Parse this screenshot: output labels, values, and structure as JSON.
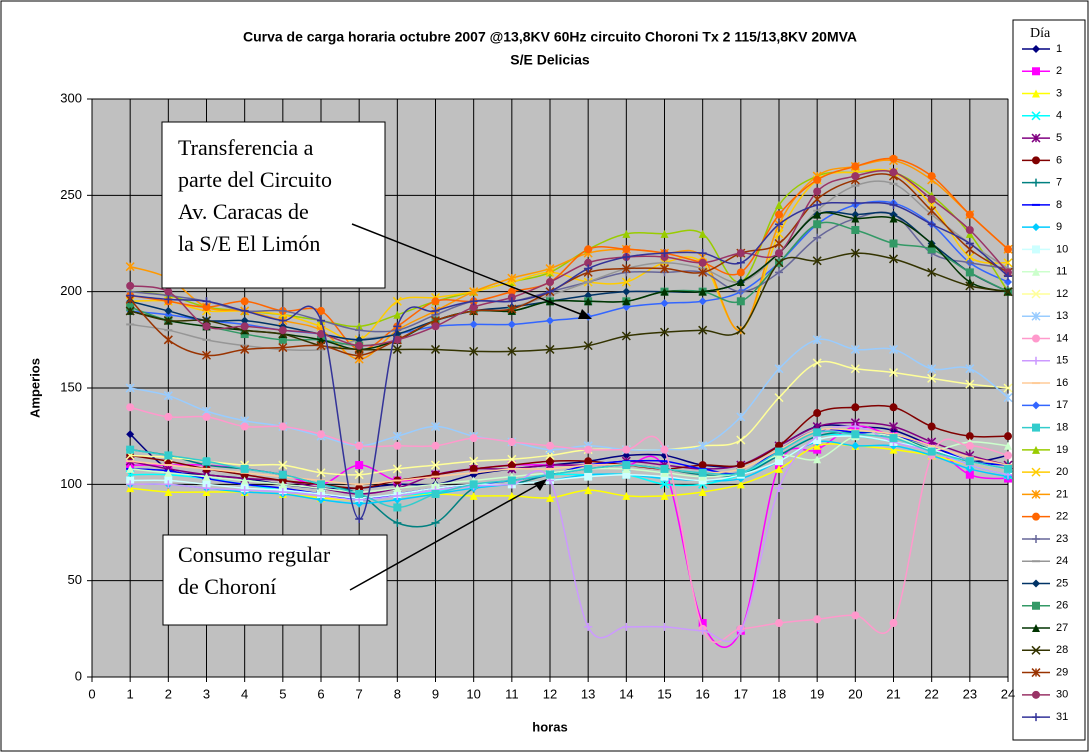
{
  "chart_data": {
    "type": "line",
    "title": "Curva de carga horaria octubre 2007 @13,8KV 60Hz circuito Choroni Tx 2 115/13,8KV 20MVA",
    "subtitle": "S/E Delicias",
    "xlabel": "horas",
    "ylabel": "Amperios",
    "legend_title": "Día",
    "legend": "right",
    "grid": true,
    "x": [
      1,
      2,
      3,
      4,
      5,
      6,
      7,
      8,
      9,
      10,
      11,
      12,
      13,
      14,
      15,
      16,
      17,
      18,
      19,
      20,
      21,
      22,
      23,
      24
    ],
    "xlim": [
      0,
      24
    ],
    "xticks": [
      0,
      1,
      2,
      3,
      4,
      5,
      6,
      7,
      8,
      9,
      10,
      11,
      12,
      13,
      14,
      15,
      16,
      17,
      18,
      19,
      20,
      21,
      22,
      23,
      24
    ],
    "ylim": [
      0,
      300
    ],
    "yticks": [
      0,
      50,
      100,
      150,
      200,
      250,
      300
    ],
    "annotations": [
      {
        "lines": [
          "Transferencia a",
          "parte del Circuito",
          "Av. Caracas de",
          "la S/E El Limón"
        ]
      },
      {
        "lines": [
          "Consumo regular",
          "de Choroní"
        ]
      }
    ],
    "series": [
      {
        "name": "1",
        "color": "#000080",
        "values": [
          126,
          108,
          105,
          103,
          100,
          98,
          98,
          100,
          100,
          105,
          108,
          110,
          112,
          115,
          115,
          110,
          110,
          120,
          130,
          130,
          128,
          120,
          112,
          115
        ]
      },
      {
        "name": "2",
        "color": "#FF00FF",
        "values": [
          110,
          110,
          110,
          108,
          105,
          100,
          110,
          102,
          105,
          108,
          110,
          110,
          110,
          110,
          108,
          28,
          24,
          110,
          118,
          130,
          125,
          120,
          105,
          103
        ]
      },
      {
        "name": "3",
        "color": "#FFFF00",
        "values": [
          98,
          96,
          96,
          96,
          95,
          93,
          92,
          94,
          95,
          94,
          94,
          93,
          97,
          94,
          94,
          96,
          100,
          108,
          120,
          120,
          118,
          115,
          110,
          105
        ]
      },
      {
        "name": "4",
        "color": "#00FFFF",
        "values": [
          105,
          105,
          103,
          100,
          97,
          95,
          92,
          94,
          96,
          100,
          102,
          105,
          105,
          105,
          100,
          100,
          105,
          115,
          125,
          125,
          122,
          118,
          110,
          105
        ]
      },
      {
        "name": "5",
        "color": "#800080",
        "values": [
          112,
          108,
          105,
          103,
          102,
          98,
          95,
          98,
          105,
          108,
          108,
          110,
          110,
          112,
          110,
          108,
          110,
          120,
          130,
          132,
          130,
          122,
          115,
          110
        ]
      },
      {
        "name": "6",
        "color": "#800000",
        "values": [
          115,
          112,
          108,
          105,
          102,
          100,
          98,
          102,
          105,
          108,
          110,
          112,
          112,
          110,
          108,
          110,
          110,
          120,
          137,
          140,
          140,
          130,
          125,
          125
        ]
      },
      {
        "name": "7",
        "color": "#008080",
        "values": [
          118,
          115,
          110,
          108,
          105,
          100,
          95,
          80,
          80,
          98,
          100,
          105,
          108,
          110,
          108,
          105,
          105,
          115,
          125,
          127,
          125,
          118,
          112,
          110
        ]
      },
      {
        "name": "8",
        "color": "#0000FF",
        "values": [
          108,
          107,
          103,
          100,
          98,
          95,
          92,
          95,
          98,
          100,
          102,
          105,
          110,
          112,
          112,
          108,
          106,
          118,
          128,
          127,
          125,
          120,
          112,
          110
        ]
      },
      {
        "name": "9",
        "color": "#00CCFF",
        "values": [
          100,
          100,
          98,
          96,
          95,
          92,
          90,
          92,
          95,
          98,
          100,
          102,
          105,
          105,
          103,
          102,
          103,
          112,
          122,
          120,
          120,
          115,
          108,
          104
        ]
      },
      {
        "name": "10",
        "color": "#CCFFFF",
        "values": [
          102,
          102,
          100,
          98,
          97,
          95,
          93,
          95,
          98,
          100,
          100,
          102,
          104,
          105,
          104,
          102,
          105,
          112,
          123,
          125,
          122,
          118,
          112,
          108
        ]
      },
      {
        "name": "11",
        "color": "#CCFFCC",
        "values": [
          108,
          106,
          104,
          102,
          100,
          98,
          96,
          98,
          100,
          102,
          104,
          106,
          108,
          108,
          106,
          104,
          106,
          115,
          113,
          125,
          125,
          118,
          122,
          120
        ]
      },
      {
        "name": "12",
        "color": "#FFFF99",
        "values": [
          115,
          114,
          112,
          110,
          110,
          106,
          105,
          108,
          110,
          112,
          113,
          115,
          118,
          118,
          118,
          120,
          123,
          145,
          163,
          160,
          158,
          155,
          152,
          150
        ]
      },
      {
        "name": "13",
        "color": "#99CCFF",
        "values": [
          150,
          146,
          138,
          133,
          130,
          125,
          120,
          125,
          130,
          125,
          122,
          118,
          120,
          118,
          118,
          120,
          135,
          160,
          175,
          170,
          170,
          160,
          160,
          145
        ]
      },
      {
        "name": "14",
        "color": "#FF99CC",
        "values": [
          140,
          135,
          135,
          130,
          130,
          126,
          120,
          120,
          120,
          124,
          122,
          120,
          118,
          118,
          118,
          25,
          25,
          28,
          30,
          32,
          28,
          115,
          120,
          115
        ]
      },
      {
        "name": "15",
        "color": "#CC99FF",
        "values": [
          100,
          100,
          98,
          97,
          96,
          94,
          92,
          94,
          97,
          99,
          100,
          102,
          26,
          26,
          26,
          24,
          24,
          98,
          125,
          130,
          122,
          117,
          110,
          105
        ]
      },
      {
        "name": "16",
        "color": "#FFCC99",
        "values": [
          112,
          110,
          108,
          106,
          104,
          102,
          100,
          102,
          104,
          106,
          108,
          108,
          110,
          110,
          108,
          106,
          108,
          118,
          128,
          128,
          126,
          120,
          114,
          110
        ]
      },
      {
        "name": "17",
        "color": "#3366FF",
        "values": [
          190,
          188,
          185,
          183,
          180,
          178,
          175,
          178,
          182,
          183,
          183,
          185,
          187,
          192,
          194,
          195,
          200,
          215,
          235,
          245,
          246,
          235,
          215,
          205
        ]
      },
      {
        "name": "18",
        "color": "#33CCCC",
        "values": [
          118,
          115,
          112,
          108,
          105,
          100,
          95,
          88,
          95,
          100,
          102,
          105,
          108,
          110,
          108,
          106,
          106,
          117,
          127,
          126,
          124,
          117,
          112,
          108
        ]
      },
      {
        "name": "19",
        "color": "#99CC00",
        "values": [
          200,
          198,
          192,
          190,
          188,
          185,
          182,
          188,
          195,
          200,
          205,
          210,
          222,
          230,
          230,
          230,
          205,
          245,
          260,
          262,
          262,
          250,
          230,
          200
        ]
      },
      {
        "name": "20",
        "color": "#FFCC00",
        "values": [
          195,
          195,
          190,
          190,
          188,
          182,
          175,
          195,
          197,
          200,
          205,
          210,
          205,
          205,
          215,
          215,
          180,
          230,
          258,
          262,
          262,
          245,
          218,
          215
        ]
      },
      {
        "name": "21",
        "color": "#FF9900",
        "values": [
          213,
          207,
          192,
          190,
          185,
          180,
          165,
          180,
          190,
          200,
          207,
          212,
          220,
          222,
          220,
          218,
          180,
          235,
          260,
          265,
          268,
          258,
          240,
          222
        ]
      },
      {
        "name": "22",
        "color": "#FF6600",
        "values": [
          198,
          195,
          192,
          195,
          190,
          190,
          170,
          182,
          195,
          195,
          200,
          205,
          222,
          222,
          220,
          215,
          210,
          240,
          258,
          265,
          269,
          260,
          240,
          222
        ]
      },
      {
        "name": "23",
        "color": "#666699",
        "values": [
          200,
          198,
          195,
          190,
          190,
          185,
          180,
          180,
          188,
          195,
          195,
          200,
          205,
          210,
          210,
          210,
          200,
          210,
          228,
          238,
          240,
          220,
          215,
          212
        ]
      },
      {
        "name": "24",
        "color": "#969696",
        "values": [
          183,
          180,
          175,
          172,
          170,
          170,
          175,
          178,
          185,
          190,
          192,
          198,
          205,
          212,
          215,
          212,
          205,
          220,
          242,
          255,
          256,
          240,
          225,
          212
        ]
      },
      {
        "name": "25",
        "color": "#003366",
        "values": [
          195,
          190,
          185,
          185,
          182,
          178,
          175,
          178,
          185,
          190,
          192,
          195,
          198,
          200,
          200,
          200,
          205,
          220,
          240,
          240,
          240,
          225,
          210,
          200
        ]
      },
      {
        "name": "26",
        "color": "#339966",
        "values": [
          192,
          185,
          182,
          178,
          175,
          175,
          172,
          175,
          185,
          190,
          190,
          195,
          195,
          195,
          200,
          200,
          195,
          215,
          235,
          232,
          225,
          222,
          210,
          200
        ]
      },
      {
        "name": "27",
        "color": "#003300",
        "values": [
          190,
          185,
          182,
          180,
          178,
          175,
          170,
          175,
          185,
          190,
          190,
          195,
          195,
          195,
          200,
          200,
          205,
          220,
          240,
          238,
          238,
          225,
          205,
          200
        ]
      },
      {
        "name": "28",
        "color": "#333300",
        "values": [
          190,
          185,
          185,
          180,
          178,
          172,
          170,
          170,
          170,
          169,
          169,
          170,
          172,
          177,
          179,
          180,
          180,
          215,
          216,
          220,
          217,
          210,
          203,
          200
        ]
      },
      {
        "name": "29",
        "color": "#993300",
        "values": [
          196,
          175,
          167,
          170,
          171,
          172,
          167,
          175,
          185,
          190,
          191,
          200,
          210,
          212,
          212,
          210,
          220,
          225,
          248,
          258,
          260,
          242,
          222,
          210
        ]
      },
      {
        "name": "30",
        "color": "#993366",
        "values": [
          203,
          200,
          182,
          182,
          180,
          178,
          172,
          175,
          182,
          192,
          197,
          205,
          215,
          218,
          218,
          215,
          220,
          220,
          252,
          260,
          262,
          248,
          232,
          210
        ]
      },
      {
        "name": "31",
        "color": "#333399",
        "values": [
          198,
          196,
          195,
          190,
          185,
          185,
          82,
          182,
          190,
          195,
          195,
          200,
          212,
          218,
          220,
          220,
          215,
          235,
          245,
          246,
          245,
          235,
          225,
          208
        ]
      }
    ]
  }
}
